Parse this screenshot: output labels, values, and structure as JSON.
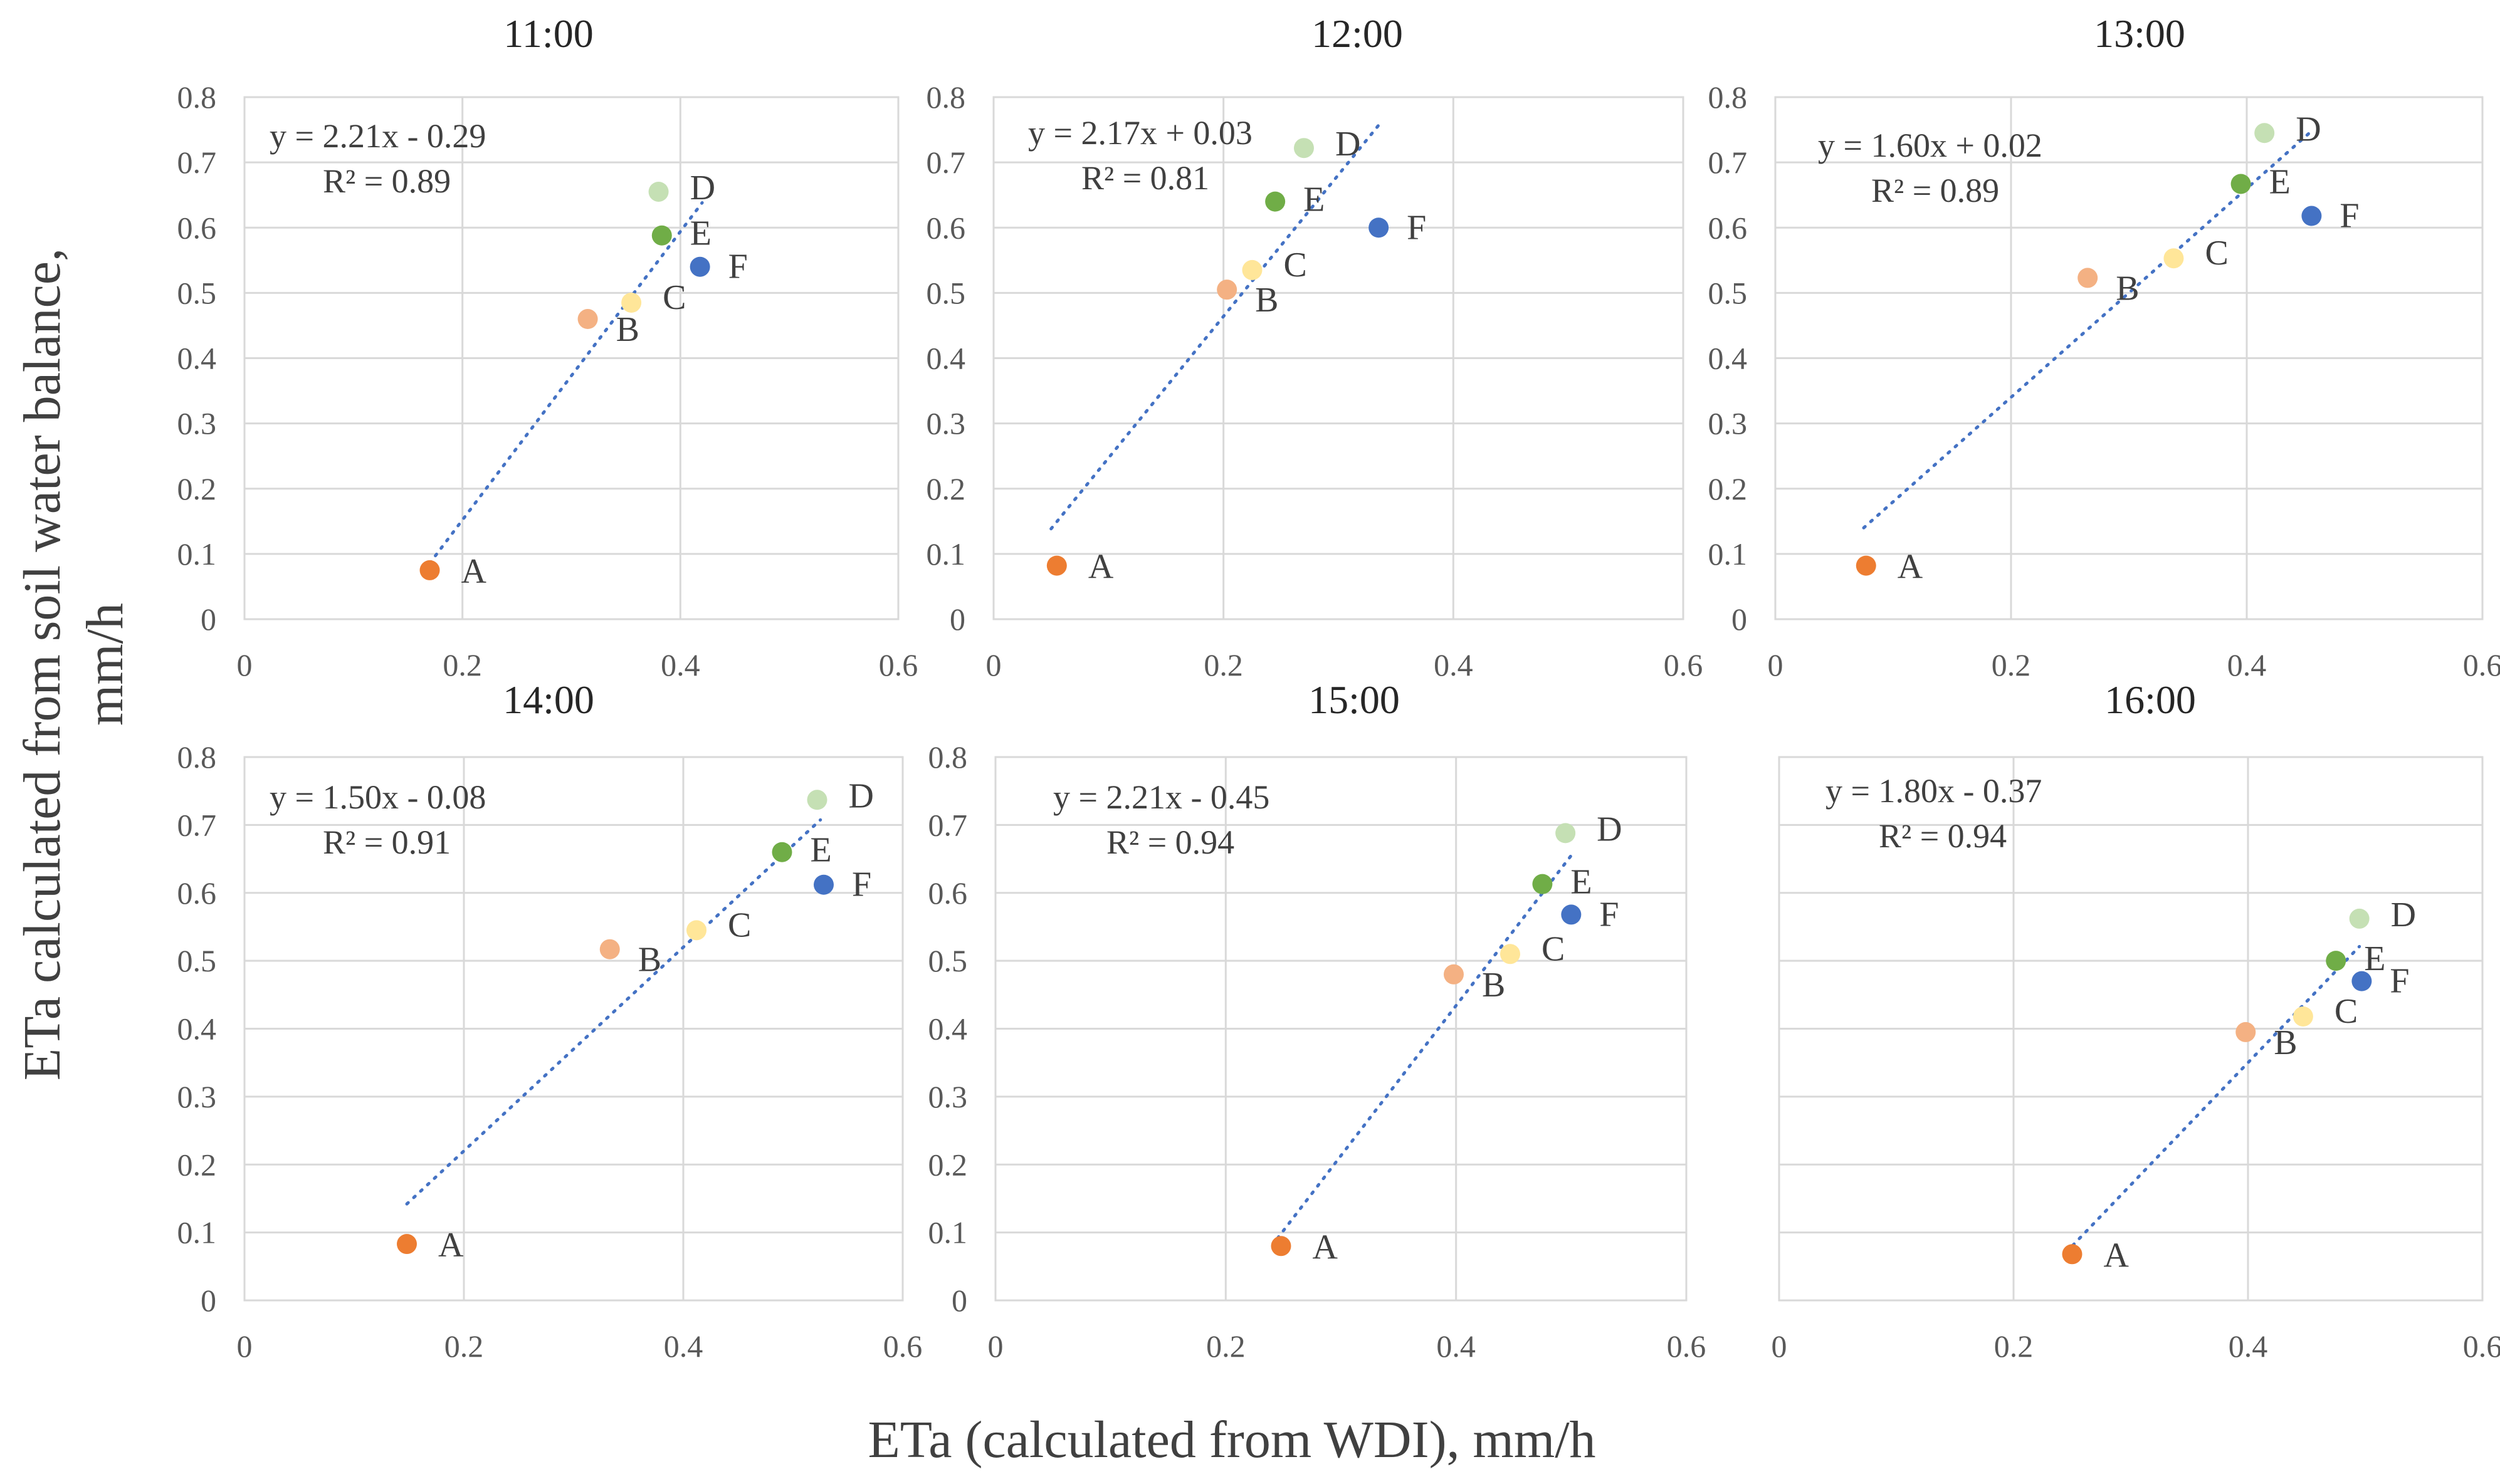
{
  "figure": {
    "xlabel": "ETa (calculated from WDI), mm/h",
    "ylabel": "ETa calculated from soil water balance, mm/h"
  },
  "series_colors": {
    "A": "#ed7d31",
    "B": "#f4b183",
    "C": "#ffe699",
    "D": "#c5e0b4",
    "E": "#70ad47",
    "F": "#4472c4"
  },
  "trendline_color": "#4472c4",
  "chart_data": [
    {
      "type": "scatter",
      "title": "11:00",
      "xlim": [
        0,
        0.6
      ],
      "ylim": [
        0,
        0.8
      ],
      "xticks": [
        "0",
        "0.2",
        "0.4",
        "0.6"
      ],
      "yticks": [
        "0",
        "0.1",
        "0.2",
        "0.3",
        "0.4",
        "0.5",
        "0.6",
        "0.7",
        "0.8"
      ],
      "equation": "y = 2.21x - 0.29",
      "r2": "R² = 0.89",
      "trendline": {
        "slope": 2.21,
        "intercept": -0.29,
        "x_range": [
          0.17,
          0.42
        ]
      },
      "points": [
        {
          "label": "A",
          "x": 0.17,
          "y": 0.075
        },
        {
          "label": "B",
          "x": 0.315,
          "y": 0.46
        },
        {
          "label": "C",
          "x": 0.355,
          "y": 0.485
        },
        {
          "label": "D",
          "x": 0.38,
          "y": 0.655
        },
        {
          "label": "E",
          "x": 0.383,
          "y": 0.588
        },
        {
          "label": "F",
          "x": 0.418,
          "y": 0.54
        }
      ]
    },
    {
      "type": "scatter",
      "title": "12:00",
      "xlim": [
        0,
        0.6
      ],
      "ylim": [
        0,
        0.8
      ],
      "xticks": [
        "0",
        "0.2",
        "0.4",
        "0.6"
      ],
      "yticks": [
        "0",
        "0.1",
        "0.2",
        "0.3",
        "0.4",
        "0.5",
        "0.6",
        "0.7",
        "0.8"
      ],
      "equation": "y = 2.17x + 0.03",
      "r2": "R² = 0.81",
      "trendline": {
        "slope": 2.17,
        "intercept": 0.03,
        "x_range": [
          0.05,
          0.335
        ]
      },
      "points": [
        {
          "label": "A",
          "x": 0.055,
          "y": 0.082
        },
        {
          "label": "B",
          "x": 0.203,
          "y": 0.505
        },
        {
          "label": "C",
          "x": 0.225,
          "y": 0.535
        },
        {
          "label": "D",
          "x": 0.27,
          "y": 0.722
        },
        {
          "label": "E",
          "x": 0.245,
          "y": 0.64
        },
        {
          "label": "F",
          "x": 0.335,
          "y": 0.6
        }
      ]
    },
    {
      "type": "scatter",
      "title": "13:00",
      "xlim": [
        0,
        0.6
      ],
      "ylim": [
        0,
        0.8
      ],
      "xticks": [
        "0",
        "0.2",
        "0.4",
        "0.6"
      ],
      "yticks": [
        "0",
        "0.1",
        "0.2",
        "0.3",
        "0.4",
        "0.5",
        "0.6",
        "0.7",
        "0.8"
      ],
      "equation": "y = 1.60x + 0.02",
      "r2": "R² = 0.89",
      "trendline": {
        "slope": 1.6,
        "intercept": 0.02,
        "x_range": [
          0.075,
          0.455
        ]
      },
      "points": [
        {
          "label": "A",
          "x": 0.077,
          "y": 0.082
        },
        {
          "label": "B",
          "x": 0.265,
          "y": 0.523
        },
        {
          "label": "C",
          "x": 0.338,
          "y": 0.553
        },
        {
          "label": "D",
          "x": 0.415,
          "y": 0.745
        },
        {
          "label": "E",
          "x": 0.395,
          "y": 0.667
        },
        {
          "label": "F",
          "x": 0.455,
          "y": 0.618
        }
      ]
    },
    {
      "type": "scatter",
      "title": "14:00",
      "xlim": [
        0,
        0.6
      ],
      "ylim": [
        0,
        0.8
      ],
      "xticks": [
        "0",
        "0.2",
        "0.4",
        "0.6"
      ],
      "yticks": [
        "0",
        "0.1",
        "0.2",
        "0.3",
        "0.4",
        "0.5",
        "0.6",
        "0.7",
        "0.8"
      ],
      "equation": "y = 1.50x - 0.08",
      "r2": "R² = 0.91",
      "trendline": {
        "slope": 1.5,
        "intercept": -0.08,
        "x_range": [
          0.148,
          0.525
        ]
      },
      "points": [
        {
          "label": "A",
          "x": 0.148,
          "y": 0.083
        },
        {
          "label": "B",
          "x": 0.333,
          "y": 0.517
        },
        {
          "label": "C",
          "x": 0.412,
          "y": 0.545
        },
        {
          "label": "D",
          "x": 0.522,
          "y": 0.737
        },
        {
          "label": "E",
          "x": 0.49,
          "y": 0.66
        },
        {
          "label": "F",
          "x": 0.528,
          "y": 0.612
        }
      ]
    },
    {
      "type": "scatter",
      "title": "15:00",
      "xlim": [
        0,
        0.6
      ],
      "ylim": [
        0,
        0.8
      ],
      "xticks": [
        "0",
        "0.2",
        "0.4",
        "0.6"
      ],
      "yticks": [
        "0",
        "0.1",
        "0.2",
        "0.3",
        "0.4",
        "0.5",
        "0.6",
        "0.7",
        "0.8"
      ],
      "equation": "y = 2.21x - 0.45",
      "r2": "R² = 0.94",
      "trendline": {
        "slope": 2.21,
        "intercept": -0.45,
        "x_range": [
          0.245,
          0.5
        ]
      },
      "points": [
        {
          "label": "A",
          "x": 0.248,
          "y": 0.08
        },
        {
          "label": "B",
          "x": 0.398,
          "y": 0.48
        },
        {
          "label": "C",
          "x": 0.447,
          "y": 0.51
        },
        {
          "label": "D",
          "x": 0.495,
          "y": 0.688
        },
        {
          "label": "E",
          "x": 0.475,
          "y": 0.613
        },
        {
          "label": "F",
          "x": 0.5,
          "y": 0.568
        }
      ]
    },
    {
      "type": "scatter",
      "title": "16:00",
      "xlim": [
        0,
        0.6
      ],
      "ylim": [
        0,
        0.8
      ],
      "xticks": [
        "0",
        "0.2",
        "0.4",
        "0.6"
      ],
      "yticks": [],
      "equation": "y = 1.80x - 0.37",
      "r2": "R² = 0.94",
      "trendline": {
        "slope": 1.8,
        "intercept": -0.37,
        "x_range": [
          0.245,
          0.495
        ]
      },
      "points": [
        {
          "label": "A",
          "x": 0.25,
          "y": 0.068
        },
        {
          "label": "B",
          "x": 0.398,
          "y": 0.395
        },
        {
          "label": "C",
          "x": 0.447,
          "y": 0.418
        },
        {
          "label": "D",
          "x": 0.495,
          "y": 0.562
        },
        {
          "label": "E",
          "x": 0.475,
          "y": 0.5
        },
        {
          "label": "F",
          "x": 0.497,
          "y": 0.47
        }
      ]
    }
  ]
}
